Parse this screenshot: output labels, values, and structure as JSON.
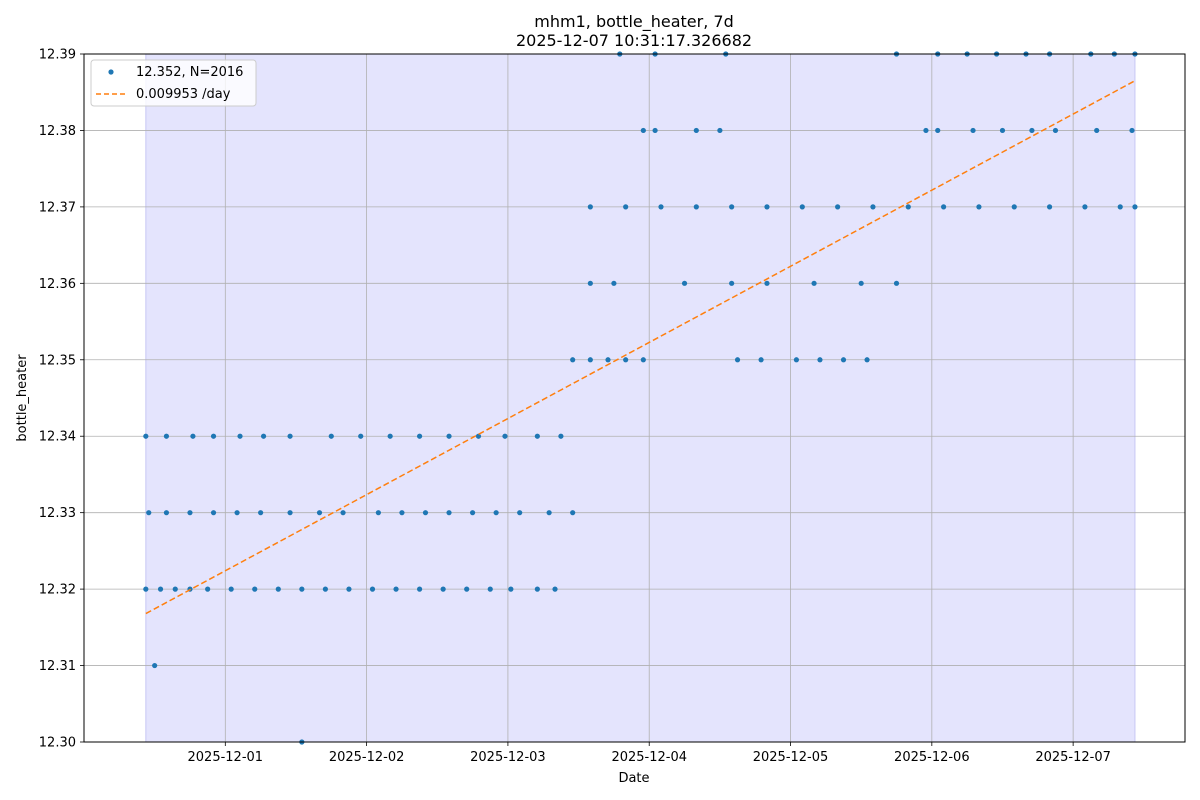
{
  "chart_data": {
    "type": "scatter",
    "title": "mhm1, bottle_heater, 7d",
    "subtitle": "2025-12-07 10:31:17.326682",
    "xlabel": "Date",
    "ylabel": "bottle_heater",
    "xlim": [
      "2025-11-30 00:00",
      "2025-12-07 19:00"
    ],
    "ylim": [
      12.3,
      12.39
    ],
    "x_ticks": [
      "2025-12-01",
      "2025-12-02",
      "2025-12-03",
      "2025-12-04",
      "2025-12-05",
      "2025-12-06",
      "2025-12-07"
    ],
    "y_ticks": [
      "12.30",
      "12.31",
      "12.32",
      "12.33",
      "12.34",
      "12.35",
      "12.36",
      "12.37",
      "12.38",
      "12.39"
    ],
    "grid": true,
    "legend_position": "top-left",
    "shaded_range": [
      "2025-11-30 10:30",
      "2025-12-07 10:30"
    ],
    "series": [
      {
        "name": "12.352, N=2016",
        "kind": "scatter",
        "color": "#1f77b4",
        "x": [
          "2025-11-30 10:30",
          "2025-11-30 13:00",
          "2025-11-30 15:30",
          "2025-11-30 18:00",
          "2025-11-30 21:00",
          "2025-12-01 01:00",
          "2025-12-01 05:00",
          "2025-12-01 09:00",
          "2025-12-01 13:00",
          "2025-12-01 17:00",
          "2025-12-01 21:00",
          "2025-12-02 01:00",
          "2025-12-02 05:00",
          "2025-12-02 09:00",
          "2025-12-02 13:00",
          "2025-12-02 17:00",
          "2025-12-02 21:00",
          "2025-12-03 00:30",
          "2025-12-03 05:00",
          "2025-12-03 08:00",
          "2025-11-30 11:00",
          "2025-11-30 14:00",
          "2025-11-30 18:00",
          "2025-11-30 22:00",
          "2025-12-01 02:00",
          "2025-12-01 06:00",
          "2025-12-01 11:00",
          "2025-12-01 16:00",
          "2025-12-01 20:00",
          "2025-12-02 02:00",
          "2025-12-02 06:00",
          "2025-12-02 10:00",
          "2025-12-02 14:00",
          "2025-12-02 18:00",
          "2025-12-02 22:00",
          "2025-12-03 02:00",
          "2025-12-03 07:00",
          "2025-12-03 11:00",
          "2025-11-30 10:30",
          "2025-11-30 14:00",
          "2025-11-30 18:30",
          "2025-11-30 22:00",
          "2025-12-01 02:30",
          "2025-12-01 06:30",
          "2025-12-01 11:00",
          "2025-12-01 18:00",
          "2025-12-01 23:00",
          "2025-12-02 04:00",
          "2025-12-02 09:00",
          "2025-12-02 14:00",
          "2025-12-02 19:00",
          "2025-12-02 23:30",
          "2025-12-03 05:00",
          "2025-12-03 09:00",
          "2025-11-30 12:00",
          "2025-12-01 13:00",
          "2025-12-03 11:00",
          "2025-12-03 14:00",
          "2025-12-03 17:00",
          "2025-12-03 20:00",
          "2025-12-03 23:00",
          "2025-12-04 15:00",
          "2025-12-04 19:00",
          "2025-12-05 01:00",
          "2025-12-05 05:00",
          "2025-12-05 09:00",
          "2025-12-05 13:00",
          "2025-12-03 14:00",
          "2025-12-03 18:00",
          "2025-12-04 06:00",
          "2025-12-04 14:00",
          "2025-12-04 20:00",
          "2025-12-05 04:00",
          "2025-12-05 12:00",
          "2025-12-05 18:00",
          "2025-12-03 14:00",
          "2025-12-03 20:00",
          "2025-12-04 02:00",
          "2025-12-04 08:00",
          "2025-12-04 14:00",
          "2025-12-04 20:00",
          "2025-12-05 02:00",
          "2025-12-05 08:00",
          "2025-12-05 14:00",
          "2025-12-05 20:00",
          "2025-12-06 02:00",
          "2025-12-06 08:00",
          "2025-12-06 14:00",
          "2025-12-06 20:00",
          "2025-12-07 02:00",
          "2025-12-07 08:00",
          "2025-12-07 10:30",
          "2025-12-03 23:00",
          "2025-12-04 01:00",
          "2025-12-04 08:00",
          "2025-12-04 12:00",
          "2025-12-05 23:00",
          "2025-12-06 01:00",
          "2025-12-06 07:00",
          "2025-12-06 12:00",
          "2025-12-06 17:00",
          "2025-12-06 21:00",
          "2025-12-07 04:00",
          "2025-12-07 10:00",
          "2025-12-03 19:00",
          "2025-12-04 01:00",
          "2025-12-04 13:00",
          "2025-12-05 18:00",
          "2025-12-06 01:00",
          "2025-12-06 06:00",
          "2025-12-06 11:00",
          "2025-12-06 16:00",
          "2025-12-06 20:00",
          "2025-12-07 03:00",
          "2025-12-07 07:00",
          "2025-12-07 10:30"
        ],
        "y": [
          12.32,
          12.32,
          12.32,
          12.32,
          12.32,
          12.32,
          12.32,
          12.32,
          12.32,
          12.32,
          12.32,
          12.32,
          12.32,
          12.32,
          12.32,
          12.32,
          12.32,
          12.32,
          12.32,
          12.32,
          12.33,
          12.33,
          12.33,
          12.33,
          12.33,
          12.33,
          12.33,
          12.33,
          12.33,
          12.33,
          12.33,
          12.33,
          12.33,
          12.33,
          12.33,
          12.33,
          12.33,
          12.33,
          12.34,
          12.34,
          12.34,
          12.34,
          12.34,
          12.34,
          12.34,
          12.34,
          12.34,
          12.34,
          12.34,
          12.34,
          12.34,
          12.34,
          12.34,
          12.34,
          12.31,
          12.3,
          12.35,
          12.35,
          12.35,
          12.35,
          12.35,
          12.35,
          12.35,
          12.35,
          12.35,
          12.35,
          12.35,
          12.36,
          12.36,
          12.36,
          12.36,
          12.36,
          12.36,
          12.36,
          12.36,
          12.37,
          12.37,
          12.37,
          12.37,
          12.37,
          12.37,
          12.37,
          12.37,
          12.37,
          12.37,
          12.37,
          12.37,
          12.37,
          12.37,
          12.37,
          12.37,
          12.37,
          12.38,
          12.38,
          12.38,
          12.38,
          12.38,
          12.38,
          12.38,
          12.38,
          12.38,
          12.38,
          12.38,
          12.38,
          12.39,
          12.39,
          12.39,
          12.39,
          12.39,
          12.39,
          12.39,
          12.39,
          12.39,
          12.39,
          12.39,
          12.39
        ]
      },
      {
        "name": "0.009953 /day",
        "kind": "line",
        "color": "#ff7f0e",
        "dashed": true,
        "x": [
          "2025-11-30 10:30",
          "2025-12-07 10:30"
        ],
        "y": [
          12.3168,
          12.3865
        ]
      }
    ]
  }
}
